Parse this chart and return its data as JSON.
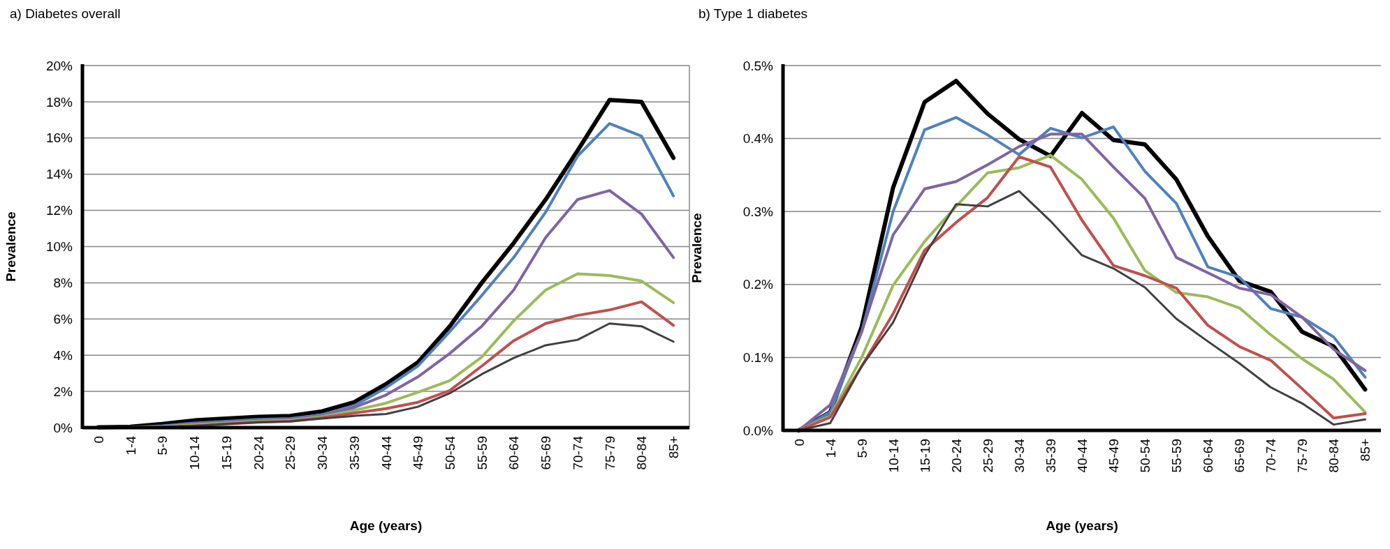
{
  "chart_data": [
    {
      "type": "line",
      "title": "a) Diabetes overall",
      "xlabel": "Age (years)",
      "ylabel": "Prevalence",
      "categories": [
        "0",
        "1-4",
        "5-9",
        "10-14",
        "15-19",
        "20-24",
        "25-29",
        "30-34",
        "35-39",
        "40-44",
        "45-49",
        "50-54",
        "55-59",
        "60-64",
        "65-69",
        "70-74",
        "75-79",
        "80-84",
        "85+"
      ],
      "series": [
        {
          "color": "#000000",
          "values": [
            0.02,
            0.05,
            0.2,
            0.4,
            0.5,
            0.6,
            0.65,
            0.9,
            1.4,
            2.4,
            3.6,
            5.6,
            8.0,
            10.2,
            12.6,
            15.3,
            18.1,
            18.0,
            14.9
          ]
        },
        {
          "color": "#4f81bd",
          "values": [
            0,
            0.02,
            0.1,
            0.25,
            0.35,
            0.45,
            0.5,
            0.7,
            1.2,
            2.2,
            3.4,
            5.3,
            7.3,
            9.4,
            11.9,
            15.0,
            16.8,
            16.1,
            12.8
          ]
        },
        {
          "color": "#8064a2",
          "values": [
            0,
            0.01,
            0.05,
            0.2,
            0.3,
            0.4,
            0.45,
            0.65,
            1.1,
            1.8,
            2.8,
            4.1,
            5.6,
            7.6,
            10.5,
            12.6,
            13.1,
            11.8,
            9.4
          ]
        },
        {
          "color": "#9bbb59",
          "values": [
            0,
            0.01,
            0.05,
            0.15,
            0.25,
            0.35,
            0.4,
            0.6,
            0.95,
            1.35,
            1.95,
            2.6,
            3.9,
            5.9,
            7.6,
            8.5,
            8.4,
            8.1,
            6.9
          ]
        },
        {
          "color": "#c0504d",
          "values": [
            0,
            0.01,
            0.03,
            0.1,
            0.2,
            0.3,
            0.35,
            0.55,
            0.8,
            1.05,
            1.4,
            2.05,
            3.4,
            4.8,
            5.75,
            6.2,
            6.5,
            6.95,
            5.65
          ]
        },
        {
          "color": "#404040",
          "values": [
            0,
            0.01,
            0.03,
            0.1,
            0.2,
            0.3,
            0.35,
            0.5,
            0.65,
            0.75,
            1.15,
            1.9,
            2.95,
            3.85,
            4.55,
            4.85,
            5.75,
            5.6,
            4.75
          ]
        }
      ],
      "ylim": [
        0,
        20
      ],
      "yticks": [
        {
          "value": 0,
          "label": "0%"
        },
        {
          "value": 2,
          "label": "2%"
        },
        {
          "value": 4,
          "label": "4%"
        },
        {
          "value": 6,
          "label": "6%"
        },
        {
          "value": 8,
          "label": "8%"
        },
        {
          "value": 10,
          "label": "10%"
        },
        {
          "value": 12,
          "label": "12%"
        },
        {
          "value": 14,
          "label": "14%"
        },
        {
          "value": 16,
          "label": "16%"
        },
        {
          "value": 18,
          "label": "18%"
        },
        {
          "value": 20,
          "label": "20%"
        }
      ],
      "grid": "y",
      "marker": "none",
      "line_style": "solid"
    },
    {
      "type": "line",
      "title": "b) Type 1 diabetes",
      "xlabel": "Age (years)",
      "ylabel": "Prevalence",
      "categories": [
        "0",
        "1-4",
        "5-9",
        "10-14",
        "15-19",
        "20-24",
        "25-29",
        "30-34",
        "35-39",
        "40-44",
        "45-49",
        "50-54",
        "55-59",
        "60-64",
        "65-69",
        "70-74",
        "75-79",
        "80-84",
        "85+"
      ],
      "series": [
        {
          "color": "#000000",
          "values": [
            0,
            0.025,
            0.142,
            0.333,
            0.45,
            0.479,
            0.434,
            0.399,
            0.376,
            0.435,
            0.398,
            0.392,
            0.344,
            0.266,
            0.205,
            0.19,
            0.135,
            0.115,
            0.056
          ]
        },
        {
          "color": "#4f81bd",
          "values": [
            0,
            0.025,
            0.135,
            0.3,
            0.412,
            0.429,
            0.405,
            0.378,
            0.414,
            0.401,
            0.416,
            0.355,
            0.311,
            0.224,
            0.21,
            0.167,
            0.155,
            0.128,
            0.073
          ]
        },
        {
          "color": "#8064a2",
          "values": [
            0,
            0.035,
            0.135,
            0.268,
            0.331,
            0.341,
            0.364,
            0.389,
            0.406,
            0.406,
            0.361,
            0.318,
            0.237,
            0.216,
            0.195,
            0.186,
            0.155,
            0.111,
            0.082
          ]
        },
        {
          "color": "#9bbb59",
          "values": [
            0,
            0.02,
            0.1,
            0.199,
            0.259,
            0.307,
            0.353,
            0.36,
            0.377,
            0.344,
            0.291,
            0.219,
            0.189,
            0.183,
            0.168,
            0.131,
            0.098,
            0.07,
            0.025
          ]
        },
        {
          "color": "#c0504d",
          "values": [
            0,
            0.018,
            0.088,
            0.16,
            0.247,
            0.285,
            0.319,
            0.375,
            0.361,
            0.288,
            0.226,
            0.212,
            0.195,
            0.144,
            0.115,
            0.096,
            0.057,
            0.017,
            0.023
          ]
        },
        {
          "color": "#404040",
          "values": [
            0,
            0.01,
            0.088,
            0.148,
            0.24,
            0.31,
            0.307,
            0.328,
            0.287,
            0.24,
            0.222,
            0.196,
            0.153,
            0.122,
            0.092,
            0.059,
            0.037,
            0.008,
            0.015
          ]
        }
      ],
      "ylim": [
        0,
        0.5
      ],
      "yticks": [
        {
          "value": 0,
          "label": "0.0%"
        },
        {
          "value": 0.1,
          "label": "0.1%"
        },
        {
          "value": 0.2,
          "label": "0.2%"
        },
        {
          "value": 0.3,
          "label": "0.3%"
        },
        {
          "value": 0.4,
          "label": "0.4%"
        },
        {
          "value": 0.5,
          "label": "0.5%"
        }
      ],
      "grid": "y",
      "marker": "none",
      "line_style": "solid"
    }
  ]
}
